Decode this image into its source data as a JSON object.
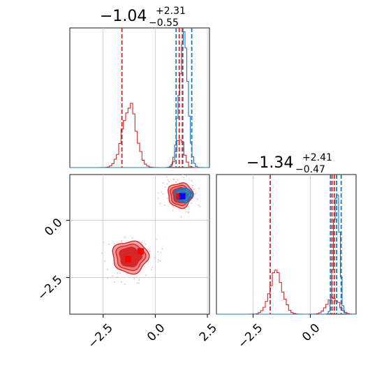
{
  "chart_data": {
    "type": "corner",
    "colors": {
      "red": "#d62728",
      "blue": "#1f77b4",
      "red_fill_light": "#f4a6a6",
      "grid": "#c8c8c8",
      "blue_marker": "#0000ff",
      "red_marker": "#ff0000"
    },
    "ranges": {
      "p0": [
        -4.1,
        2.6
      ],
      "p1": [
        -4.1,
        2.0
      ]
    },
    "grid": true,
    "titles": [
      {
        "main": "−1.04",
        "plus": "+2.31",
        "minus": "−0.55"
      },
      {
        "main": "−1.34",
        "plus": "+2.41",
        "minus": "−0.47"
      }
    ],
    "x_ticks_p0": [
      {
        "value": -2.5,
        "label": "−2.5"
      },
      {
        "value": 0.0,
        "label": "0.0"
      },
      {
        "value": 2.5,
        "label": "2.5"
      }
    ],
    "y_ticks_p1": [
      {
        "value": 0.0,
        "label": "0.0"
      },
      {
        "value": -2.5,
        "label": "−2.5"
      }
    ],
    "x_ticks_p1": [
      {
        "value": -2.5,
        "label": "−2.5"
      },
      {
        "value": 0.0,
        "label": "0.0"
      }
    ],
    "marginal_p0": {
      "red_quantiles": [
        -1.6,
        1.15,
        1.3
      ],
      "blue_quantiles": [
        1.0,
        1.32,
        1.75
      ],
      "red_peaks": [
        {
          "mu": -1.25,
          "sigma": 0.33,
          "height": 0.44
        },
        {
          "mu": 1.2,
          "sigma": 0.18,
          "height": 0.22
        }
      ],
      "blue_peaks": [
        {
          "mu": 1.35,
          "sigma": 0.2,
          "height": 0.98
        }
      ]
    },
    "marginal_p1": {
      "red_quantiles": [
        -1.75,
        0.95,
        1.05
      ],
      "blue_quantiles": [
        0.88,
        1.15,
        1.35
      ],
      "red_peaks": [
        {
          "mu": -1.5,
          "sigma": 0.28,
          "height": 0.3
        },
        {
          "mu": 1.0,
          "sigma": 0.26,
          "height": 0.12
        }
      ],
      "blue_peaks": [
        {
          "mu": 1.15,
          "sigma": 0.12,
          "height": 0.98
        }
      ]
    },
    "joint": {
      "red_clusters": [
        {
          "cx": -1.2,
          "cy": -1.6,
          "sx": 0.55,
          "sy": 0.45
        },
        {
          "cx": 1.2,
          "cy": 1.1,
          "sx": 0.38,
          "sy": 0.35
        }
      ],
      "blue_cluster": {
        "cx": 1.35,
        "cy": 1.1,
        "sx": 0.28,
        "sy": 0.2
      },
      "red_markers": [
        {
          "x": -1.3,
          "y": -1.7
        },
        {
          "x": -0.7,
          "y": -1.35
        },
        {
          "x": 1.15,
          "y": 1.05
        }
      ],
      "blue_marker": {
        "x": 1.3,
        "y": 1.05
      }
    }
  }
}
